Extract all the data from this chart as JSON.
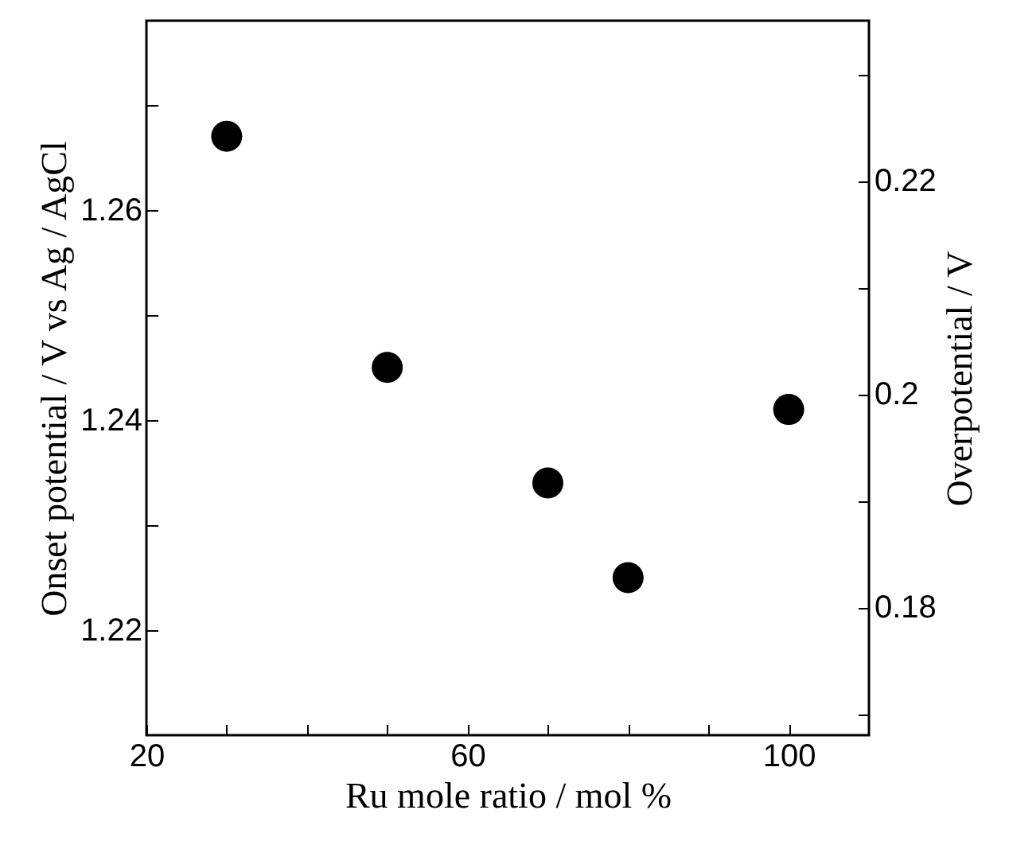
{
  "chart_data": {
    "type": "scatter",
    "xlabel": "Ru mole ratio / mol %",
    "ylabel": "Onset potential / V vs Ag / AgCl",
    "y2label": "Overpotential / V",
    "x": [
      30,
      50,
      70,
      80,
      100
    ],
    "series": [
      {
        "color": "#000000",
        "values": [
          1.267,
          1.245,
          1.234,
          1.225,
          1.241
        ]
      }
    ],
    "xlim": [
      20,
      110
    ],
    "xticks": [
      20,
      {
        "value": 30,
        "label": null
      },
      {
        "value": 40,
        "label": null
      },
      {
        "value": 50,
        "label": null
      },
      60,
      {
        "value": 70,
        "label": null
      },
      {
        "value": 80,
        "label": null
      },
      {
        "value": 90,
        "label": null
      },
      100
    ],
    "ylim": [
      1.21,
      1.278
    ],
    "yticks": [
      1.22,
      {
        "value": 1.23,
        "label": null
      },
      1.24,
      {
        "value": 1.25,
        "label": null
      },
      1.26,
      {
        "value": 1.27,
        "label": null
      }
    ],
    "y2lim": [
      0.168,
      0.235
    ],
    "y2ticks": [
      {
        "value": 0.17,
        "label": null
      },
      0.18,
      {
        "value": 0.19,
        "label": null
      },
      0.2,
      {
        "value": 0.21,
        "label": null
      },
      0.22,
      {
        "value": 0.23,
        "label": null
      }
    ],
    "marker": "circle"
  }
}
